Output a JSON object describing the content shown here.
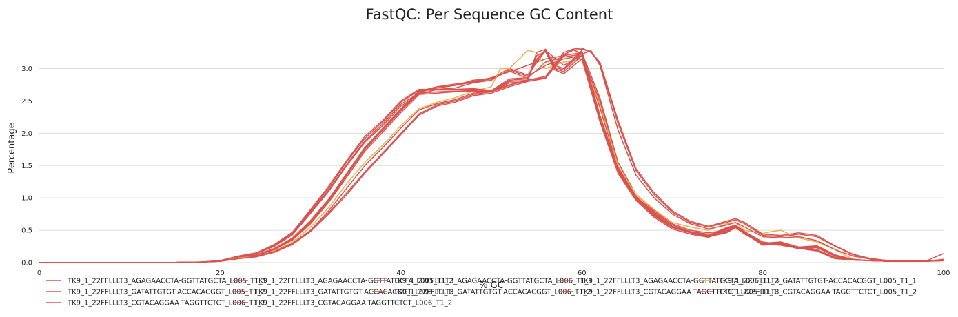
{
  "chart_data": {
    "type": "line",
    "title": "FastQC: Per Sequence GC Content",
    "xlabel": "% GC",
    "ylabel": "Percentage",
    "xlim": [
      0,
      100
    ],
    "ylim": [
      0,
      3.4
    ],
    "x_ticks": [
      "0",
      "20",
      "40",
      "60",
      "80",
      "100"
    ],
    "y_ticks": [
      "0.0",
      "0.5",
      "1.0",
      "1.5",
      "2.0",
      "2.5",
      "3.0"
    ],
    "grid": "horizontal",
    "legend_position": "bottom",
    "colors": {
      "red": "#d9534f",
      "orange": "#f0ad4e",
      "grid": "#dddddd"
    },
    "series": [
      {
        "name": "TK9_1_22FFLLLT3_AGAGAACCTA-GGTTATGCTA_L005_T1_1",
        "color": "#d9534f",
        "x": [
          0,
          14,
          18,
          20,
          22,
          24,
          26,
          28,
          30,
          32,
          34,
          36,
          38,
          40,
          42,
          44,
          46,
          48,
          50,
          52,
          54,
          56,
          58,
          60,
          62,
          64,
          66,
          68,
          70,
          72,
          74,
          76,
          77,
          78,
          80,
          82,
          84,
          86,
          88,
          90,
          92,
          94,
          96,
          98,
          100
        ],
        "y": [
          0,
          0,
          0.01,
          0.03,
          0.08,
          0.12,
          0.22,
          0.38,
          0.65,
          0.98,
          1.38,
          1.78,
          2.08,
          2.38,
          2.65,
          2.72,
          2.76,
          2.8,
          2.86,
          2.95,
          3.05,
          3.15,
          3.2,
          3.25,
          2.55,
          1.55,
          1.05,
          0.8,
          0.6,
          0.5,
          0.46,
          0.5,
          0.58,
          0.48,
          0.32,
          0.28,
          0.24,
          0.2,
          0.08,
          0.04,
          0.03,
          0.02,
          0.02,
          0.02,
          0.05
        ]
      },
      {
        "name": "TK9_1_22FFLLLT3_AGAGAACCTA-GGTTATGCTA_L005_T1_2",
        "color": "#d9534f",
        "x": [
          0,
          14,
          18,
          20,
          22,
          24,
          26,
          28,
          30,
          32,
          34,
          36,
          38,
          40,
          42,
          44,
          46,
          48,
          50,
          52,
          54,
          56,
          58,
          60,
          62,
          64,
          66,
          68,
          70,
          72,
          74,
          76,
          77,
          78,
          80,
          82,
          84,
          86,
          88,
          90,
          92,
          94,
          96,
          98,
          100
        ],
        "y": [
          0,
          0,
          0.01,
          0.03,
          0.07,
          0.11,
          0.2,
          0.36,
          0.62,
          0.95,
          1.35,
          1.75,
          2.05,
          2.35,
          2.62,
          2.72,
          2.74,
          2.82,
          2.85,
          3.0,
          2.9,
          3.28,
          3.05,
          3.2,
          2.5,
          1.5,
          1.02,
          0.78,
          0.58,
          0.48,
          0.44,
          0.48,
          0.56,
          0.46,
          0.3,
          0.27,
          0.22,
          0.2,
          0.07,
          0.04,
          0.03,
          0.02,
          0.02,
          0.02,
          0.04
        ]
      },
      {
        "name": "TK9_1_22FFLLLT3_AGAGAACCTA-GGTTATGCTA_L006_T1_1",
        "color": "#d9534f",
        "x": [
          0,
          14,
          18,
          20,
          22,
          24,
          26,
          28,
          30,
          32,
          34,
          36,
          38,
          40,
          42,
          44,
          46,
          48,
          50,
          52,
          54,
          56,
          58,
          60,
          62,
          64,
          66,
          68,
          70,
          72,
          74,
          76,
          77,
          78,
          80,
          82,
          84,
          86,
          88,
          90,
          92,
          94,
          96,
          98,
          100
        ],
        "y": [
          0,
          0,
          0.01,
          0.03,
          0.08,
          0.12,
          0.21,
          0.37,
          0.63,
          0.96,
          1.36,
          1.76,
          2.06,
          2.36,
          2.64,
          2.7,
          2.74,
          2.79,
          2.84,
          2.96,
          2.85,
          3.1,
          3.18,
          3.22,
          2.45,
          1.48,
          1.0,
          0.76,
          0.56,
          0.47,
          0.42,
          0.47,
          0.55,
          0.45,
          0.3,
          0.27,
          0.22,
          0.18,
          0.07,
          0.04,
          0.03,
          0.02,
          0.02,
          0.02,
          0.04
        ]
      },
      {
        "name": "TK9_1_22FFLLLT3_AGAGAACCTA-GGTTATGCTA_L006_T1_2",
        "color": "#d9534f",
        "x": [
          0,
          14,
          18,
          20,
          22,
          24,
          26,
          28,
          30,
          32,
          34,
          36,
          38,
          40,
          42,
          44,
          46,
          48,
          50,
          52,
          54,
          56,
          58,
          60,
          62,
          64,
          66,
          68,
          70,
          72,
          74,
          76,
          77,
          78,
          80,
          82,
          84,
          86,
          88,
          90,
          92,
          94,
          96,
          98,
          100
        ],
        "y": [
          0,
          0,
          0.01,
          0.02,
          0.07,
          0.11,
          0.2,
          0.35,
          0.6,
          0.93,
          1.32,
          1.72,
          2.02,
          2.32,
          2.6,
          2.68,
          2.7,
          2.78,
          2.82,
          2.98,
          2.88,
          3.05,
          3.15,
          3.2,
          2.4,
          1.45,
          0.98,
          0.74,
          0.55,
          0.46,
          0.4,
          0.46,
          0.54,
          0.44,
          0.29,
          0.27,
          0.22,
          0.18,
          0.06,
          0.04,
          0.03,
          0.02,
          0.02,
          0.02,
          0.04
        ]
      },
      {
        "name": "TK9_1_22FFLLLT3_GATATTGTGT-ACCACACGGT_L005_T1_1",
        "color": "#f0ad4e",
        "x": [
          0,
          14,
          18,
          20,
          22,
          24,
          26,
          28,
          30,
          32,
          34,
          36,
          38,
          40,
          42,
          44,
          46,
          48,
          50,
          51,
          52,
          54,
          55,
          56,
          58,
          60,
          62,
          64,
          66,
          68,
          70,
          72,
          74,
          76,
          77,
          78,
          80,
          81,
          82,
          84,
          86,
          88,
          90,
          92,
          94,
          96,
          98,
          100
        ],
        "y": [
          0,
          0,
          0.01,
          0.02,
          0.07,
          0.1,
          0.18,
          0.32,
          0.55,
          0.85,
          1.22,
          1.55,
          1.82,
          2.12,
          2.38,
          2.48,
          2.55,
          2.65,
          2.72,
          3.0,
          3.0,
          3.28,
          3.25,
          3.0,
          3.1,
          3.15,
          2.45,
          1.5,
          1.05,
          0.82,
          0.62,
          0.55,
          0.5,
          0.6,
          0.62,
          0.5,
          0.45,
          0.48,
          0.5,
          0.38,
          0.32,
          0.2,
          0.05,
          0.03,
          0.02,
          0.02,
          0.02,
          0.03
        ]
      },
      {
        "name": "TK9_1_22FFLLLT3_GATATTGTGT-ACCACACGGT_L005_T1_2",
        "color": "#d9534f",
        "x": [
          0,
          14,
          18,
          20,
          22,
          24,
          26,
          28,
          30,
          32,
          34,
          36,
          38,
          40,
          42,
          44,
          46,
          48,
          50,
          52,
          54,
          56,
          58,
          59,
          60,
          61,
          62,
          64,
          66,
          68,
          70,
          72,
          74,
          76,
          77,
          78,
          80,
          82,
          84,
          86,
          88,
          90,
          92,
          94,
          96,
          98,
          100
        ],
        "y": [
          0,
          0,
          0.01,
          0.02,
          0.06,
          0.1,
          0.17,
          0.3,
          0.5,
          0.8,
          1.15,
          1.5,
          1.78,
          2.08,
          2.36,
          2.46,
          2.52,
          2.62,
          2.65,
          2.75,
          2.82,
          2.88,
          3.25,
          3.3,
          3.22,
          3.28,
          3.05,
          2.05,
          1.35,
          1.0,
          0.75,
          0.6,
          0.52,
          0.58,
          0.62,
          0.55,
          0.4,
          0.38,
          0.4,
          0.34,
          0.2,
          0.1,
          0.05,
          0.03,
          0.02,
          0.02,
          0.03
        ]
      },
      {
        "name": "TK9_1_22FFLLLT3_GATATTGTGT-ACCACACGGT_L006_T1_1",
        "color": "#d9534f",
        "x": [
          0,
          14,
          18,
          20,
          22,
          24,
          26,
          28,
          30,
          32,
          34,
          36,
          38,
          40,
          42,
          44,
          46,
          48,
          50,
          52,
          54,
          56,
          58,
          59,
          60,
          61,
          62,
          64,
          66,
          68,
          70,
          72,
          74,
          76,
          77,
          78,
          80,
          82,
          84,
          86,
          88,
          90,
          92,
          94,
          96,
          98,
          100
        ],
        "y": [
          0,
          0,
          0.01,
          0.02,
          0.06,
          0.09,
          0.16,
          0.28,
          0.48,
          0.75,
          1.05,
          1.38,
          1.68,
          1.98,
          2.28,
          2.42,
          2.48,
          2.58,
          2.62,
          2.72,
          2.8,
          2.85,
          3.2,
          3.3,
          3.32,
          3.25,
          3.08,
          2.15,
          1.42,
          1.05,
          0.78,
          0.62,
          0.55,
          0.62,
          0.66,
          0.6,
          0.42,
          0.4,
          0.44,
          0.4,
          0.25,
          0.12,
          0.06,
          0.03,
          0.02,
          0.02,
          0.03
        ]
      },
      {
        "name": "TK9_1_22FFLLLT3_GATATTGTGT-ACCACACGGT_L006_T1_2",
        "color": "#d9534f",
        "x": [
          0,
          14,
          18,
          20,
          22,
          24,
          26,
          28,
          30,
          32,
          34,
          36,
          38,
          40,
          42,
          44,
          46,
          48,
          50,
          52,
          54,
          56,
          58,
          59,
          60,
          61,
          62,
          64,
          66,
          68,
          70,
          72,
          74,
          76,
          77,
          78,
          80,
          82,
          84,
          86,
          88,
          90,
          92,
          94,
          96,
          98,
          100
        ],
        "y": [
          0,
          0,
          0.01,
          0.02,
          0.06,
          0.09,
          0.16,
          0.28,
          0.49,
          0.77,
          1.08,
          1.4,
          1.7,
          2.0,
          2.3,
          2.44,
          2.5,
          2.6,
          2.64,
          2.74,
          2.82,
          2.86,
          3.22,
          3.28,
          3.3,
          3.26,
          3.1,
          2.2,
          1.45,
          1.08,
          0.8,
          0.64,
          0.56,
          0.64,
          0.68,
          0.62,
          0.44,
          0.42,
          0.46,
          0.42,
          0.26,
          0.13,
          0.06,
          0.03,
          0.02,
          0.02,
          0.14
        ]
      },
      {
        "name": "TK9_1_22FFLLLT3_CGTACAGGAA-TAGGTTCTCT_L005_T1_1",
        "color": "#d9534f",
        "x": [
          0,
          14,
          18,
          20,
          22,
          24,
          26,
          28,
          30,
          32,
          34,
          36,
          38,
          40,
          42,
          44,
          46,
          48,
          50,
          52,
          54,
          55,
          56,
          57,
          58,
          60,
          62,
          64,
          66,
          68,
          70,
          72,
          74,
          76,
          77,
          78,
          80,
          82,
          84,
          86,
          88,
          90,
          92,
          94,
          96,
          98,
          100
        ],
        "y": [
          0,
          0,
          0.01,
          0.03,
          0.09,
          0.14,
          0.26,
          0.45,
          0.78,
          1.12,
          1.52,
          1.88,
          2.15,
          2.45,
          2.62,
          2.64,
          2.65,
          2.66,
          2.64,
          2.8,
          2.82,
          3.25,
          3.3,
          3.0,
          2.95,
          3.2,
          2.2,
          1.4,
          0.98,
          0.72,
          0.54,
          0.46,
          0.4,
          0.52,
          0.56,
          0.46,
          0.28,
          0.3,
          0.22,
          0.24,
          0.1,
          0.04,
          0.03,
          0.02,
          0.02,
          0.02,
          0.04
        ]
      },
      {
        "name": "TK9_1_22FFLLLT3_CGTACAGGAA-TAGGTTCTCT_L005_T1_2",
        "color": "#d9534f",
        "x": [
          0,
          14,
          18,
          20,
          22,
          24,
          26,
          28,
          30,
          32,
          34,
          36,
          38,
          40,
          42,
          44,
          46,
          48,
          50,
          52,
          54,
          55,
          56,
          57,
          58,
          60,
          62,
          64,
          66,
          68,
          70,
          72,
          74,
          76,
          77,
          78,
          80,
          82,
          84,
          86,
          88,
          90,
          92,
          94,
          96,
          98,
          100
        ],
        "y": [
          0,
          0,
          0.01,
          0.03,
          0.09,
          0.14,
          0.25,
          0.43,
          0.76,
          1.1,
          1.5,
          1.86,
          2.12,
          2.42,
          2.6,
          2.62,
          2.64,
          2.65,
          2.64,
          2.78,
          2.8,
          3.2,
          3.26,
          2.98,
          2.92,
          3.15,
          2.18,
          1.38,
          0.96,
          0.7,
          0.52,
          0.44,
          0.39,
          0.5,
          0.54,
          0.45,
          0.27,
          0.29,
          0.21,
          0.23,
          0.1,
          0.04,
          0.03,
          0.02,
          0.02,
          0.02,
          0.04
        ]
      },
      {
        "name": "TK9_1_22FFLLLT3_CGTACAGGAA-TAGGTTCTCT_L006_T1_1",
        "color": "#d9534f",
        "x": [
          0,
          14,
          18,
          20,
          22,
          24,
          26,
          28,
          30,
          32,
          34,
          36,
          38,
          40,
          42,
          44,
          46,
          48,
          50,
          52,
          54,
          55,
          56,
          57,
          58,
          60,
          62,
          64,
          66,
          68,
          70,
          72,
          74,
          76,
          77,
          78,
          80,
          82,
          84,
          86,
          88,
          90,
          92,
          94,
          96,
          98,
          100
        ],
        "y": [
          0,
          0,
          0.01,
          0.03,
          0.1,
          0.15,
          0.27,
          0.46,
          0.8,
          1.15,
          1.56,
          1.92,
          2.18,
          2.48,
          2.66,
          2.67,
          2.67,
          2.68,
          2.65,
          2.82,
          2.84,
          3.15,
          3.28,
          3.02,
          2.98,
          3.25,
          2.25,
          1.42,
          1.0,
          0.74,
          0.55,
          0.47,
          0.41,
          0.53,
          0.57,
          0.47,
          0.29,
          0.31,
          0.23,
          0.25,
          0.11,
          0.05,
          0.03,
          0.02,
          0.02,
          0.02,
          0.04
        ]
      },
      {
        "name": "TK9_1_22FFLLLT3_CGTACAGGAA-TAGGTTCTCT_L006_T1_2",
        "color": "#d9534f",
        "x": [
          0,
          14,
          18,
          20,
          22,
          24,
          26,
          28,
          30,
          32,
          34,
          36,
          38,
          40,
          42,
          44,
          46,
          48,
          50,
          52,
          54,
          55,
          56,
          57,
          58,
          60,
          62,
          64,
          66,
          68,
          70,
          72,
          74,
          76,
          77,
          78,
          80,
          82,
          84,
          86,
          88,
          90,
          92,
          94,
          96,
          98,
          100
        ],
        "y": [
          0,
          0,
          0.01,
          0.03,
          0.1,
          0.15,
          0.28,
          0.47,
          0.82,
          1.18,
          1.58,
          1.95,
          2.2,
          2.5,
          2.68,
          2.68,
          2.68,
          2.69,
          2.66,
          2.84,
          2.86,
          3.12,
          3.3,
          3.05,
          3.0,
          3.28,
          2.28,
          1.45,
          1.02,
          0.76,
          0.56,
          0.48,
          0.42,
          0.54,
          0.58,
          0.48,
          0.3,
          0.32,
          0.24,
          0.26,
          0.12,
          0.05,
          0.03,
          0.02,
          0.02,
          0.02,
          0.04
        ]
      }
    ]
  }
}
